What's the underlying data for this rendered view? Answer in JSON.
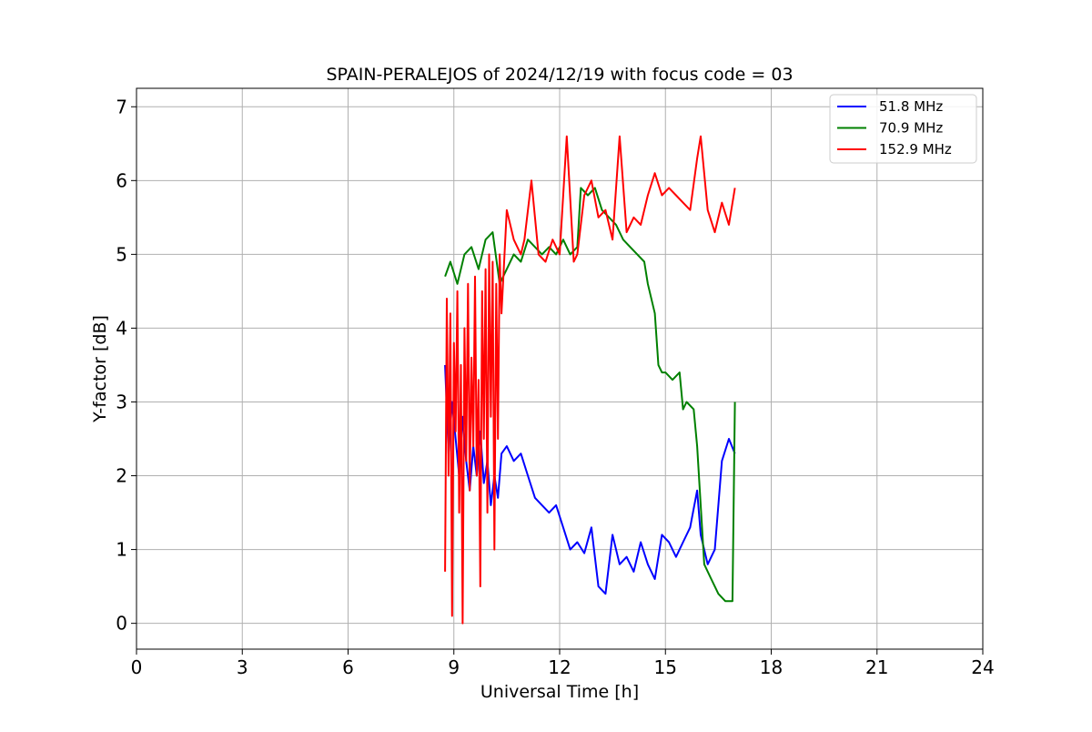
{
  "chart_data": {
    "type": "line",
    "title": "SPAIN-PERALEJOS of 2024/12/19 with focus code = 03",
    "xlabel": "Universal Time [h]",
    "ylabel": "Y-factor [dB]",
    "xlim": [
      0,
      24
    ],
    "ylim": [
      -0.35,
      7.25
    ],
    "xticks": [
      0,
      3,
      6,
      9,
      12,
      15,
      18,
      21,
      24
    ],
    "yticks": [
      0,
      1,
      2,
      3,
      4,
      5,
      6,
      7
    ],
    "grid": true,
    "legend_position": "top-right",
    "series": [
      {
        "name": " 51.8 MHz",
        "color": "#0000ff",
        "x": [
          8.75,
          8.85,
          8.95,
          9.05,
          9.15,
          9.25,
          9.35,
          9.45,
          9.55,
          9.65,
          9.75,
          9.85,
          9.95,
          10.05,
          10.15,
          10.25,
          10.35,
          10.5,
          10.7,
          10.9,
          11.1,
          11.3,
          11.5,
          11.7,
          11.9,
          12.1,
          12.3,
          12.5,
          12.7,
          12.9,
          13.1,
          13.3,
          13.5,
          13.7,
          13.9,
          14.1,
          14.3,
          14.5,
          14.7,
          14.9,
          15.1,
          15.3,
          15.5,
          15.7,
          15.9,
          16.0,
          16.2,
          16.4,
          16.6,
          16.8,
          16.97
        ],
        "y": [
          3.5,
          2.3,
          3.0,
          2.5,
          2.0,
          2.8,
          2.2,
          1.8,
          2.4,
          2.0,
          2.6,
          1.9,
          2.2,
          1.6,
          2.0,
          1.7,
          2.3,
          2.4,
          2.2,
          2.3,
          2.0,
          1.7,
          1.6,
          1.5,
          1.6,
          1.3,
          1.0,
          1.1,
          0.95,
          1.3,
          0.5,
          0.4,
          1.2,
          0.8,
          0.9,
          0.7,
          1.1,
          0.8,
          0.6,
          1.2,
          1.1,
          0.9,
          1.1,
          1.3,
          1.8,
          1.2,
          0.8,
          1.0,
          2.2,
          2.5,
          2.3
        ]
      },
      {
        "name": " 70.9 MHz",
        "color": "#008000",
        "x": [
          8.75,
          8.9,
          9.1,
          9.3,
          9.5,
          9.7,
          9.9,
          10.1,
          10.3,
          10.5,
          10.7,
          10.9,
          11.1,
          11.3,
          11.5,
          11.7,
          11.9,
          12.1,
          12.3,
          12.5,
          12.6,
          12.8,
          13.0,
          13.2,
          13.4,
          13.6,
          13.8,
          14.0,
          14.2,
          14.4,
          14.5,
          14.7,
          14.8,
          14.9,
          15.0,
          15.2,
          15.4,
          15.5,
          15.6,
          15.8,
          15.9,
          16.0,
          16.1,
          16.3,
          16.5,
          16.7,
          16.9,
          16.97
        ],
        "y": [
          4.7,
          4.9,
          4.6,
          5.0,
          5.1,
          4.8,
          5.2,
          5.3,
          4.6,
          4.8,
          5.0,
          4.9,
          5.2,
          5.1,
          5.0,
          5.1,
          5.0,
          5.2,
          5.0,
          5.1,
          5.9,
          5.8,
          5.9,
          5.6,
          5.5,
          5.4,
          5.2,
          5.1,
          5.0,
          4.9,
          4.6,
          4.2,
          3.5,
          3.4,
          3.4,
          3.3,
          3.4,
          2.9,
          3.0,
          2.9,
          2.4,
          1.6,
          0.8,
          0.6,
          0.4,
          0.3,
          0.3,
          3.0
        ]
      },
      {
        "name": " 152.9 MHz",
        "color": "#ff0000",
        "x": [
          8.75,
          8.8,
          8.85,
          8.9,
          8.95,
          9.0,
          9.05,
          9.1,
          9.15,
          9.2,
          9.25,
          9.3,
          9.35,
          9.4,
          9.45,
          9.5,
          9.55,
          9.6,
          9.65,
          9.7,
          9.75,
          9.8,
          9.85,
          9.9,
          9.95,
          10.0,
          10.05,
          10.1,
          10.15,
          10.2,
          10.25,
          10.3,
          10.35,
          10.5,
          10.7,
          10.9,
          11.0,
          11.2,
          11.4,
          11.6,
          11.8,
          12.0,
          12.2,
          12.4,
          12.5,
          12.7,
          12.9,
          13.1,
          13.3,
          13.5,
          13.7,
          13.9,
          14.1,
          14.3,
          14.5,
          14.7,
          14.9,
          15.1,
          15.3,
          15.5,
          15.7,
          15.9,
          16.0,
          16.2,
          16.4,
          16.6,
          16.8,
          16.97
        ],
        "y": [
          0.7,
          4.4,
          2.0,
          4.2,
          0.1,
          3.8,
          2.6,
          4.5,
          1.5,
          3.5,
          0.0,
          4.0,
          2.2,
          4.6,
          1.8,
          3.6,
          2.4,
          4.7,
          2.0,
          3.3,
          0.5,
          4.5,
          2.5,
          4.8,
          1.5,
          5.0,
          2.8,
          4.9,
          1.0,
          4.6,
          2.5,
          5.0,
          4.2,
          5.6,
          5.2,
          5.0,
          5.2,
          6.0,
          5.0,
          4.9,
          5.2,
          5.0,
          6.6,
          4.9,
          5.0,
          5.8,
          6.0,
          5.5,
          5.6,
          5.2,
          6.6,
          5.3,
          5.5,
          5.4,
          5.8,
          6.1,
          5.8,
          5.9,
          5.8,
          5.7,
          5.6,
          6.3,
          6.6,
          5.6,
          5.3,
          5.7,
          5.4,
          5.9
        ]
      }
    ]
  }
}
